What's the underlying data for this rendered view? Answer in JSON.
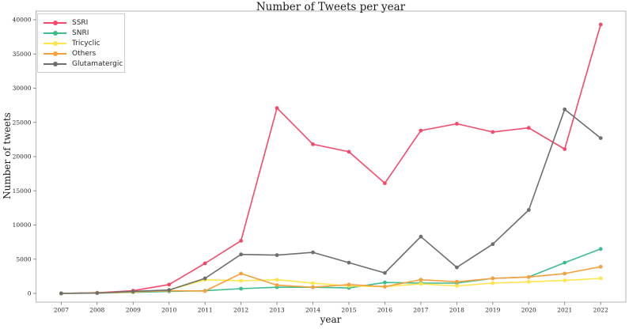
{
  "chart_data": {
    "type": "line",
    "title": "Number of Tweets per year",
    "xlabel": "year",
    "ylabel": "Number of tweets",
    "grid": false,
    "legend_position": "upper-left",
    "x": [
      2007,
      2008,
      2009,
      2010,
      2011,
      2012,
      2013,
      2014,
      2015,
      2016,
      2017,
      2018,
      2019,
      2020,
      2021,
      2022
    ],
    "xlim": [
      2006.3,
      2022.7
    ],
    "ylim": [
      -1270,
      41270
    ],
    "yticks": [
      0,
      5000,
      10000,
      15000,
      20000,
      25000,
      30000,
      35000,
      40000
    ],
    "series": [
      {
        "name": "SSRI",
        "color": "#f4496b",
        "values": [
          0,
          100,
          400,
          1300,
          4400,
          7700,
          27100,
          21800,
          20700,
          16100,
          23800,
          24800,
          23600,
          24200,
          21100,
          39300
        ]
      },
      {
        "name": "SNRI",
        "color": "#3dbd8c",
        "values": [
          0,
          50,
          150,
          300,
          400,
          700,
          900,
          900,
          800,
          1600,
          1500,
          1500,
          2200,
          2400,
          4500,
          6500
        ]
      },
      {
        "name": "Tricyclic",
        "color": "#ffe44e",
        "values": [
          0,
          50,
          200,
          500,
          2000,
          1850,
          2000,
          1500,
          1100,
          1000,
          1400,
          1100,
          1500,
          1700,
          1900,
          2200
        ]
      },
      {
        "name": "Others",
        "color": "#f5a03f",
        "values": [
          0,
          100,
          250,
          400,
          350,
          2900,
          1200,
          900,
          1300,
          1000,
          2000,
          1700,
          2200,
          2400,
          2900,
          3900
        ]
      },
      {
        "name": "Glutamatergic",
        "color": "#6e6e6e",
        "values": [
          0,
          50,
          300,
          500,
          2200,
          5700,
          5600,
          6000,
          4500,
          3000,
          8300,
          3800,
          7200,
          12200,
          26900,
          22700
        ]
      }
    ]
  }
}
